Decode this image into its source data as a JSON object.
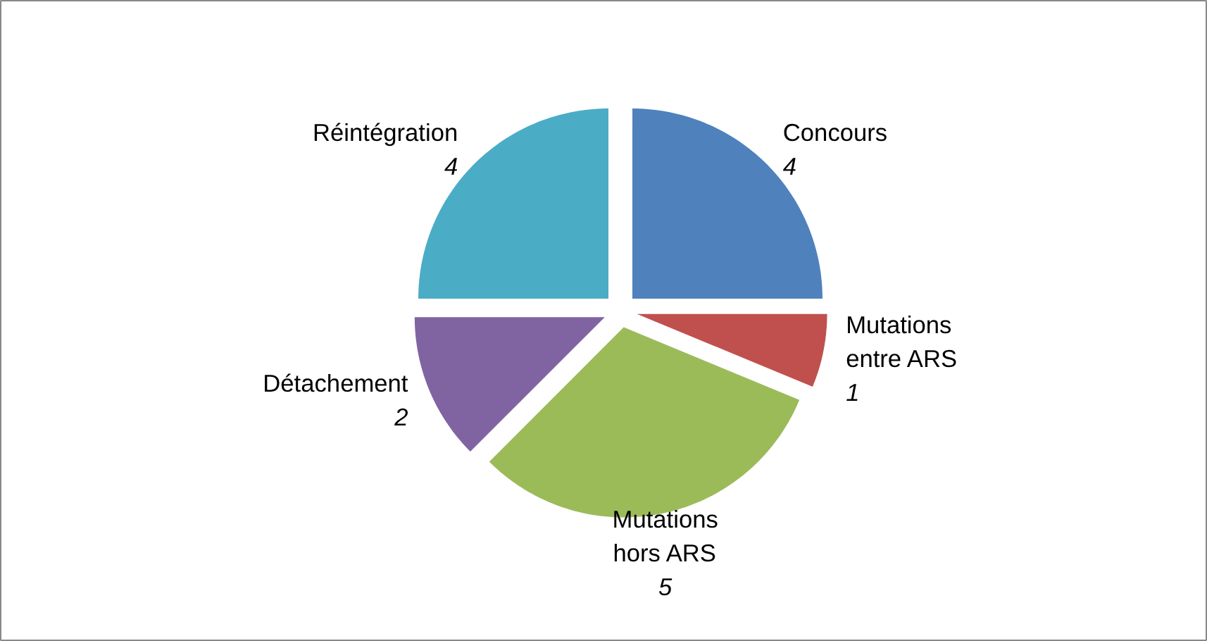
{
  "chart_data": {
    "type": "pie",
    "categories": [
      "Concours",
      "Mutations entre ARS",
      "Mutations hors ARS",
      "Détachement",
      "Réintégration"
    ],
    "values": [
      4,
      1,
      5,
      2,
      4
    ],
    "colors": [
      "#4f81bd",
      "#c0504d",
      "#9bbb59",
      "#8064a2",
      "#4bacc6"
    ],
    "data_labels": true
  }
}
